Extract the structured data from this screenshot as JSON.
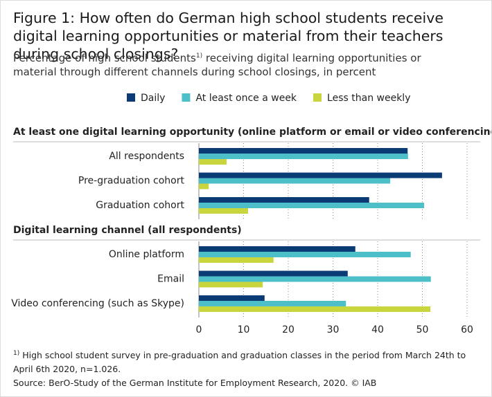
{
  "chart_data": {
    "type": "bar",
    "orientation": "horizontal",
    "title": "Figure 1: How often do German high school students receive digital learning opportunities or material from their teachers during school closings?",
    "subtitle": [
      "Percentage of high school students",
      "1)",
      " receiving digital learning opportunities or material through different channels during school closings, in percent"
    ],
    "series": [
      {
        "name": "Daily",
        "color": "#0b3b74"
      },
      {
        "name": "At least once a week",
        "color": "#4dbfc9"
      },
      {
        "name": "Less than weekly",
        "color": "#c9d53c"
      }
    ],
    "sections": [
      {
        "title": "At least one digital learning opportunity (online platform or email or video conferencing)",
        "categories": [
          "All respondents",
          "Pre-graduation cohort",
          "Graduation cohort"
        ],
        "values": [
          [
            46.7,
            54.4,
            38.1
          ],
          [
            46.8,
            42.8,
            50.4
          ],
          [
            6.2,
            2.2,
            11.0
          ]
        ]
      },
      {
        "title": "Digital learning channel (all respondents)",
        "categories": [
          "Online platform",
          "Email",
          "Video conferencing (such as Skype)"
        ],
        "values": [
          [
            35.0,
            33.3,
            14.7
          ],
          [
            47.4,
            51.9,
            32.9
          ],
          [
            16.7,
            14.3,
            51.8
          ]
        ]
      }
    ],
    "xlim": [
      0,
      60
    ],
    "xticks": [
      0,
      10,
      20,
      30,
      40,
      50,
      60
    ],
    "grid": true,
    "legend": "top",
    "footnote": [
      "1)",
      " High school student survey in pre-graduation and graduation classes in the period from March 24th to April 6th 2020, n=1.026."
    ],
    "source": "Source: BerO-Study of the German Institute for Employment Research, 2020. © IAB"
  }
}
